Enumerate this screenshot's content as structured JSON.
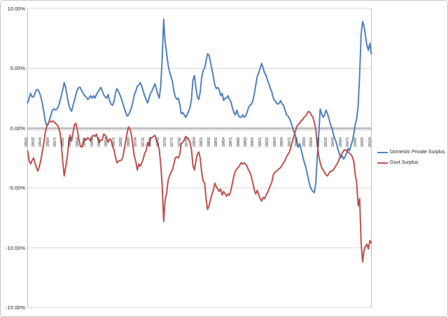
{
  "chart_data": {
    "type": "line",
    "title": "",
    "xlabel": "",
    "ylabel": "",
    "x_frequency": "quarterly",
    "x_range": [
      "1952Q1",
      "2010Q4"
    ],
    "ylim": [
      -15,
      10
    ],
    "grid": "horizontal-only",
    "legend_position": "right-middle",
    "y_tick_values": [
      10,
      5,
      0,
      -5,
      -10,
      -15
    ],
    "y_tick_labels": [
      "10.00%",
      "5.00%",
      "0.00%",
      "-5.00%",
      "-10.00%",
      "-15.00%"
    ],
    "x_tick_step_quarters": 5,
    "x_tick_labels": [
      "19521",
      "19532",
      "19543",
      "19554",
      "19571",
      "19582",
      "19593",
      "19604",
      "19621",
      "19632",
      "19643",
      "19654",
      "19671",
      "19682",
      "19693",
      "19704",
      "19721",
      "19732",
      "19743",
      "19754",
      "19771",
      "19782",
      "19793",
      "19804",
      "19821",
      "19832",
      "19843",
      "19854",
      "19871",
      "19882",
      "19893",
      "19904",
      "19921",
      "19932",
      "19943",
      "19954",
      "19971",
      "19982",
      "19993",
      "20004",
      "20021",
      "20032",
      "20043",
      "20054",
      "20071",
      "20082",
      "20093",
      "20104"
    ],
    "series": [
      {
        "name": "Domestic Private Surplus",
        "color": "#4F81BD",
        "values": [
          2.1,
          2.5,
          2.9,
          2.6,
          2.6,
          2.9,
          3.2,
          3.2,
          3.0,
          2.6,
          2.1,
          1.4,
          0.6,
          0.2,
          0.3,
          0.7,
          1.1,
          1.5,
          1.6,
          1.5,
          1.6,
          1.8,
          2.2,
          2.7,
          3.2,
          3.8,
          3.4,
          2.7,
          2.0,
          1.6,
          1.4,
          1.9,
          2.3,
          2.8,
          3.2,
          3.4,
          3.4,
          3.1,
          2.9,
          2.7,
          2.6,
          2.4,
          2.5,
          2.7,
          2.5,
          2.7,
          2.5,
          2.8,
          3.0,
          3.2,
          3.4,
          3.1,
          2.8,
          2.6,
          2.5,
          2.8,
          2.3,
          2.0,
          1.9,
          2.2,
          2.9,
          3.3,
          3.1,
          2.8,
          2.5,
          2.1,
          1.7,
          1.3,
          1.0,
          1.1,
          1.4,
          1.7,
          2.2,
          2.8,
          3.1,
          3.5,
          3.6,
          3.8,
          3.5,
          3.1,
          2.7,
          2.4,
          2.1,
          2.5,
          2.9,
          3.1,
          3.4,
          3.7,
          3.3,
          2.8,
          2.5,
          3.5,
          5.8,
          9.1,
          7.2,
          6.3,
          5.3,
          4.7,
          4.3,
          3.9,
          3.1,
          2.6,
          2.4,
          2.5,
          2.0,
          1.2,
          1.3,
          1.1,
          0.9,
          1.1,
          1.4,
          1.7,
          2.4,
          4.0,
          4.4,
          3.4,
          2.6,
          2.4,
          3.0,
          4.2,
          4.8,
          5.0,
          5.6,
          6.2,
          6.1,
          5.5,
          4.9,
          4.3,
          3.6,
          3.3,
          3.4,
          3.2,
          2.7,
          2.9,
          2.3,
          2.5,
          2.5,
          2.7,
          2.4,
          2.2,
          1.7,
          1.3,
          1.1,
          1.5,
          1.1,
          0.9,
          0.9,
          1.1,
          0.9,
          1.0,
          1.3,
          1.7,
          1.9,
          2.0,
          2.3,
          2.9,
          3.6,
          4.3,
          4.6,
          5.0,
          5.4,
          5.0,
          4.6,
          4.4,
          4.0,
          3.7,
          3.3,
          3.0,
          2.5,
          2.3,
          2.1,
          2.0,
          2.1,
          2.3,
          2.0,
          1.9,
          1.5,
          1.1,
          1.0,
          0.8,
          0.5,
          0.1,
          -0.3,
          -0.6,
          -1.1,
          -1.6,
          -1.3,
          -1.8,
          -2.3,
          -2.8,
          -3.2,
          -3.7,
          -4.3,
          -4.8,
          -5.1,
          -5.3,
          -5.4,
          -4.6,
          -2.4,
          -0.6,
          1.6,
          1.2,
          0.9,
          1.1,
          1.5,
          1.2,
          0.8,
          0.3,
          0.0,
          -0.5,
          -0.9,
          -1.2,
          -1.7,
          -2.1,
          -2.5,
          -2.3,
          -2.6,
          -2.4,
          -2.1,
          -1.7,
          -1.9,
          -1.5,
          -1.1,
          -0.5,
          0.3,
          0.8,
          1.9,
          4.5,
          7.8,
          8.9,
          8.5,
          7.7,
          6.9,
          6.5,
          7.1,
          6.2
        ]
      },
      {
        "name": "Govt Surplus",
        "color": "#C0504D",
        "values": [
          -1.9,
          -2.7,
          -3.0,
          -2.7,
          -2.5,
          -2.9,
          -3.3,
          -3.6,
          -3.2,
          -2.7,
          -2.0,
          -1.3,
          -0.4,
          0.1,
          0.4,
          0.6,
          0.5,
          0.6,
          0.5,
          0.4,
          0.3,
          0.1,
          -0.3,
          -1.3,
          -2.8,
          -4.0,
          -3.3,
          -2.5,
          -1.4,
          -0.6,
          -1.1,
          -0.4,
          0.3,
          0.4,
          -0.2,
          -0.9,
          -1.5,
          -1.6,
          -1.2,
          -0.9,
          -1.0,
          -0.8,
          -0.9,
          -1.1,
          -0.7,
          -0.6,
          -0.7,
          -0.5,
          -0.9,
          -1.2,
          -1.0,
          -1.0,
          -0.5,
          -0.6,
          -0.8,
          -1.2,
          -0.9,
          -1.0,
          -1.5,
          -1.8,
          -2.4,
          -2.9,
          -2.8,
          -2.7,
          -2.7,
          -2.5,
          -1.8,
          -1.1,
          -0.4,
          0.1,
          -0.1,
          -0.6,
          -1.5,
          -2.4,
          -2.8,
          -3.5,
          -3.0,
          -3.2,
          -2.9,
          -2.6,
          -2.1,
          -1.9,
          -1.2,
          -1.5,
          -0.8,
          -0.8,
          -0.7,
          -0.6,
          -1.0,
          -1.3,
          -1.8,
          -3.0,
          -4.8,
          -7.8,
          -6.0,
          -5.5,
          -4.4,
          -4.0,
          -3.7,
          -3.5,
          -3.0,
          -2.5,
          -2.4,
          -2.5,
          -2.2,
          -1.3,
          -1.2,
          -1.0,
          -0.7,
          -0.8,
          -0.9,
          -1.2,
          -1.8,
          -3.1,
          -3.5,
          -2.8,
          -2.2,
          -2.0,
          -2.5,
          -3.7,
          -4.4,
          -4.6,
          -5.9,
          -6.8,
          -6.5,
          -6.0,
          -5.5,
          -5.2,
          -4.6,
          -4.9,
          -5.1,
          -5.3,
          -5.1,
          -5.6,
          -5.3,
          -5.5,
          -5.7,
          -5.5,
          -5.6,
          -5.2,
          -4.6,
          -4.0,
          -3.6,
          -3.4,
          -3.3,
          -3.1,
          -2.9,
          -3.0,
          -2.9,
          -3.0,
          -3.2,
          -3.5,
          -3.7,
          -4.1,
          -4.6,
          -5.2,
          -5.5,
          -5.2,
          -5.6,
          -5.9,
          -6.1,
          -5.8,
          -5.9,
          -5.6,
          -5.4,
          -5.1,
          -4.8,
          -4.5,
          -3.9,
          -3.7,
          -3.6,
          -3.5,
          -3.4,
          -3.3,
          -3.1,
          -2.9,
          -2.7,
          -2.4,
          -2.2,
          -2.0,
          -1.6,
          -1.1,
          -0.7,
          -0.3,
          0.1,
          0.3,
          0.4,
          0.6,
          0.7,
          0.9,
          1.0,
          1.2,
          1.4,
          1.3,
          1.1,
          0.9,
          0.5,
          -0.1,
          -1.3,
          -2.3,
          -2.9,
          -3.3,
          -3.5,
          -3.7,
          -3.9,
          -4.0,
          -3.8,
          -3.6,
          -3.6,
          -3.5,
          -3.3,
          -3.1,
          -2.9,
          -2.6,
          -2.3,
          -2.1,
          -1.9,
          -1.8,
          -1.9,
          -2.0,
          -2.1,
          -2.2,
          -2.4,
          -2.8,
          -3.9,
          -4.6,
          -6.5,
          -5.9,
          -9.6,
          -11.2,
          -10.2,
          -9.9,
          -9.7,
          -10.1,
          -9.4,
          -9.6
        ]
      }
    ]
  },
  "colors": {
    "background": "#FFFFFF",
    "chart_border": "#C6C6C6",
    "plot_border": "#BFBFBF",
    "gridline": "#D9D9D9",
    "zero_axis": "#808080",
    "tick": "#808080",
    "label_text": "#262626"
  }
}
